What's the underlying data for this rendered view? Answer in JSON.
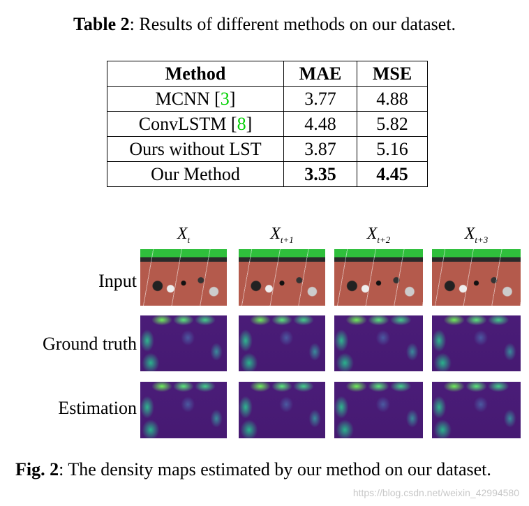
{
  "table": {
    "caption": {
      "label": "Table 2",
      "text": ": Results of different methods on our dataset."
    },
    "header": [
      "Method",
      "MAE",
      "MSE"
    ],
    "rows": [
      {
        "method": [
          "MCNN [",
          "3",
          "]"
        ],
        "mae": 3.77,
        "mse": 4.88
      },
      {
        "method": [
          "ConvLSTM [",
          "8",
          "]"
        ],
        "mae": 4.48,
        "mse": 5.82
      },
      {
        "method": [
          "Ours without LST"
        ],
        "mae": 3.87,
        "mse": 5.16
      },
      {
        "method": [
          "Our Method"
        ],
        "mae": 3.35,
        "mse": 4.45
      }
    ]
  },
  "figure": {
    "columns": [
      {
        "base": "X",
        "sub": "t"
      },
      {
        "base": "X",
        "sub": "t+1"
      },
      {
        "base": "X",
        "sub": "t+2"
      },
      {
        "base": "X",
        "sub": "t+3"
      }
    ],
    "rows": [
      "Input",
      "Ground truth",
      "Estimation"
    ],
    "caption": {
      "label": "Fig. 2",
      "text": ": The density maps estimated by our method on our dataset."
    }
  },
  "watermark": "https://blog.csdn.net/weixin_42994580"
}
